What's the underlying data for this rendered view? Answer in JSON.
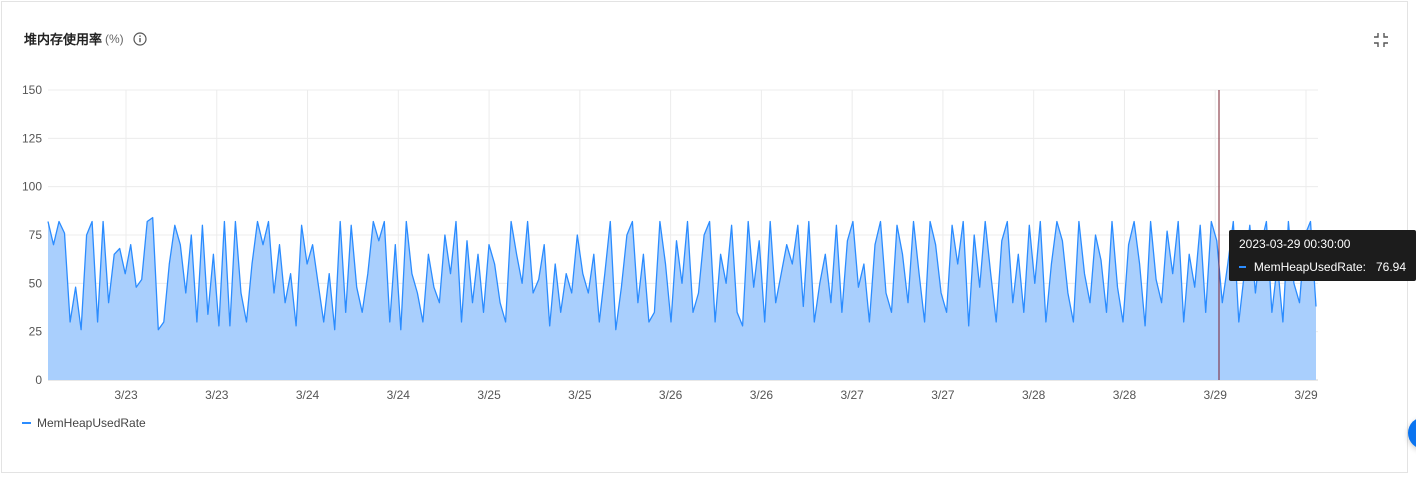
{
  "panel": {
    "title": "堆内存使用率",
    "unit": "(%)",
    "info_icon": "info-circle-icon",
    "collapse_icon": "collapse-arrows-icon"
  },
  "chart_data": {
    "type": "area",
    "title": "堆内存使用率",
    "ylabel": "",
    "xlabel": "",
    "ylim": [
      0,
      150
    ],
    "y_ticks": [
      "0",
      "25",
      "50",
      "75",
      "100",
      "125",
      "150"
    ],
    "x_tick_labels": [
      "3/23",
      "3/23",
      "3/24",
      "3/24",
      "3/25",
      "3/25",
      "3/26",
      "3/26",
      "3/27",
      "3/27",
      "3/28",
      "3/28",
      "3/29",
      "3/29"
    ],
    "grid": true,
    "legend_position": "bottom-left",
    "series": [
      {
        "name": "MemHeapUsedRate",
        "color": "#2b8cff",
        "fill": "#a9cffd",
        "x_start": "2023-03-22 08:00",
        "x_end": "2023-03-29 07:00",
        "values": [
          82,
          70,
          82,
          76,
          30,
          48,
          26,
          75,
          82,
          30,
          82,
          40,
          65,
          68,
          55,
          70,
          48,
          52,
          82,
          84,
          26,
          30,
          60,
          80,
          70,
          45,
          75,
          30,
          80,
          34,
          65,
          28,
          82,
          28,
          82,
          45,
          30,
          60,
          82,
          70,
          82,
          45,
          70,
          40,
          55,
          28,
          80,
          60,
          70,
          50,
          30,
          55,
          26,
          82,
          35,
          80,
          48,
          35,
          55,
          82,
          72,
          82,
          30,
          70,
          26,
          82,
          55,
          45,
          30,
          65,
          48,
          40,
          75,
          55,
          82,
          30,
          72,
          40,
          65,
          35,
          70,
          60,
          40,
          30,
          82,
          65,
          50,
          82,
          45,
          52,
          70,
          28,
          60,
          35,
          55,
          45,
          75,
          55,
          45,
          65,
          30,
          55,
          82,
          26,
          48,
          75,
          82,
          40,
          65,
          30,
          35,
          82,
          60,
          30,
          72,
          50,
          82,
          35,
          45,
          75,
          82,
          30,
          65,
          50,
          80,
          35,
          28,
          82,
          48,
          72,
          30,
          82,
          40,
          55,
          70,
          60,
          80,
          38,
          82,
          30,
          50,
          65,
          40,
          80,
          35,
          72,
          82,
          48,
          60,
          30,
          70,
          82,
          45,
          35,
          80,
          65,
          40,
          82,
          55,
          30,
          82,
          70,
          45,
          35,
          80,
          60,
          82,
          28,
          75,
          48,
          82,
          55,
          30,
          72,
          82,
          40,
          65,
          35,
          80,
          50,
          82,
          30,
          60,
          82,
          72,
          45,
          30,
          82,
          55,
          40,
          75,
          62,
          35,
          82,
          48,
          30,
          70,
          82,
          60,
          28,
          82,
          52,
          40,
          76.94,
          55,
          82,
          30,
          65,
          48,
          80,
          35,
          82,
          72,
          40,
          60,
          82,
          30,
          55,
          80,
          45,
          70,
          82,
          35,
          60,
          30,
          82,
          50,
          40,
          75,
          82,
          38
        ]
      }
    ],
    "tooltip": {
      "time": "2023-03-29 00:30:00",
      "series": "MemHeapUsedRate:",
      "value": "76.94"
    }
  }
}
